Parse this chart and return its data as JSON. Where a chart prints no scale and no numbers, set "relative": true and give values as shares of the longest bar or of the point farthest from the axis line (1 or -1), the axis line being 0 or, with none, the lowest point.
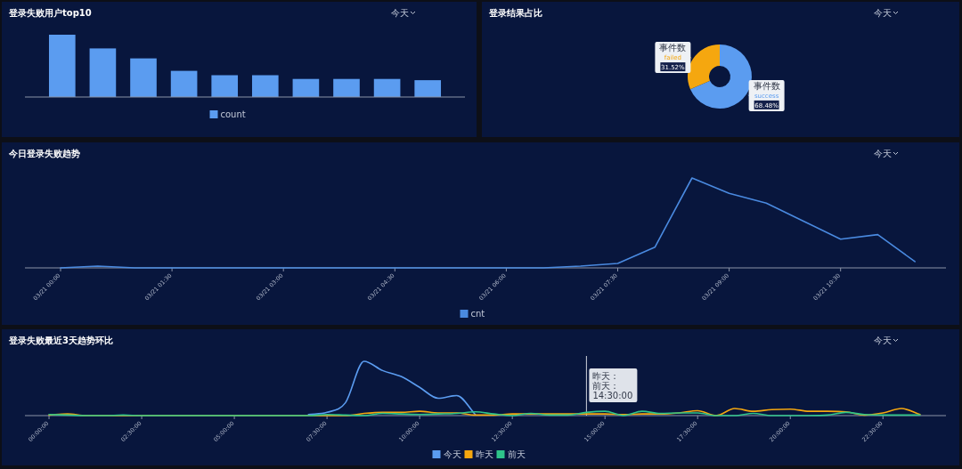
{
  "chart_data": [
    {
      "type": "bar",
      "title": "登录失败用户top10",
      "categories": [
        null,
        null,
        null,
        null,
        null,
        null,
        null,
        null,
        null,
        null
      ],
      "relative": true,
      "legend": "bottom",
      "annotations": [
        "今天"
      ],
      "series": [
        {
          "name": "count",
          "color": "#5b9cf0",
          "values": [
            1,
            0.78,
            0.62,
            0.42,
            0.35,
            0.35,
            0.29,
            0.29,
            0.29,
            0.27
          ]
        }
      ]
    },
    {
      "type": "donut",
      "title": "登录结果占比",
      "categories": [
        "success",
        "failed"
      ],
      "values": [
        68.48,
        31.52
      ],
      "colors": [
        "#5b9cf0",
        "#f5a70f"
      ],
      "value_labels": [
        "68.48%",
        "31.52%"
      ],
      "annotations": [
        {
          "text": "事件数",
          "x": "success"
        },
        {
          "text": "事件数",
          "x": "failed"
        },
        "今天"
      ]
    },
    {
      "type": "line",
      "title": "今日登录失败趋势",
      "relative": true,
      "legend": "bottom",
      "annotations": [
        "今天"
      ],
      "categories": [
        "03/21 00:00",
        null,
        null,
        "03/21 01:30",
        null,
        null,
        "03/21 03:00",
        null,
        null,
        "03/21 04:30",
        null,
        null,
        "03/21 06:00",
        null,
        null,
        "03/21 07:30",
        null,
        null,
        "03/21 09:00",
        null,
        null,
        "03/21 10:30",
        null,
        null
      ],
      "series": [
        {
          "name": "cnt",
          "color": "#4a8ae0",
          "values": [
            0,
            0.02,
            0,
            0,
            0,
            0,
            0,
            0,
            0,
            0,
            0,
            0,
            0,
            0,
            0.02,
            0.05,
            0.23,
            1,
            0.83,
            0.72,
            0.52,
            0.32,
            0.37,
            0.07
          ]
        }
      ]
    },
    {
      "type": "line",
      "title": "登录失败最近3天趋势环比",
      "relative": true,
      "legend": "bottom",
      "annotations": [
        "今天",
        {
          "text": "昨天：",
          "x": 14.5
        },
        {
          "text": "前天：",
          "x": 14.5
        },
        {
          "text": "14:30:00",
          "x": 14.5
        }
      ],
      "ref_lines": [
        {
          "axis": "x",
          "value": 14.5,
          "color": "#cfd3dc"
        }
      ],
      "x": [
        0,
        0.5,
        1,
        1.5,
        2,
        2.5,
        3,
        3.5,
        4,
        4.5,
        5,
        5.5,
        6,
        6.5,
        7,
        7.5,
        8,
        8.5,
        9,
        9.5,
        10,
        10.5,
        11,
        11.5,
        12,
        12.5,
        13,
        13.5,
        14,
        14.5,
        15,
        15.5,
        16,
        16.5,
        17,
        17.5,
        18,
        18.5,
        19,
        19.5,
        20,
        20.5,
        21,
        21.5,
        22,
        22.5,
        23,
        23.5
      ],
      "xlim": [
        -0.65,
        24.2
      ],
      "xticks": [
        {
          "value": 0,
          "label": "00:00:00"
        },
        {
          "value": 2.5,
          "label": "02:30:00"
        },
        {
          "value": 5,
          "label": "05:00:00"
        },
        {
          "value": 7.5,
          "label": "07:30:00"
        },
        {
          "value": 10,
          "label": "10:00:00"
        },
        {
          "value": 12.5,
          "label": "12:30:00"
        },
        {
          "value": 15,
          "label": "15:00:00"
        },
        {
          "value": 17.5,
          "label": "17:30:00"
        },
        {
          "value": 20,
          "label": "20:00:00"
        },
        {
          "value": 22.5,
          "label": "22:30:00"
        }
      ],
      "series": [
        {
          "name": "今天",
          "color": "#5b9cf0",
          "values": [
            null,
            null,
            null,
            null,
            null,
            null,
            null,
            null,
            null,
            null,
            null,
            null,
            null,
            null,
            0.02,
            0.06,
            0.24,
            1,
            0.83,
            0.72,
            0.52,
            0.32,
            0.37,
            0.02,
            null,
            null,
            null,
            null,
            null,
            null,
            null,
            null,
            null,
            null,
            null,
            null,
            null,
            null,
            null,
            null,
            null,
            null,
            null,
            null,
            null,
            null,
            null,
            null
          ]
        },
        {
          "name": "昨天",
          "color": "#f5a70f",
          "values": [
            0.01,
            0.03,
            0,
            0,
            0,
            0,
            0,
            0,
            0,
            0,
            0,
            0,
            0,
            0,
            0,
            0,
            0,
            0.04,
            0.06,
            0.06,
            0.08,
            0.05,
            0.05,
            0.01,
            0.01,
            0.03,
            0.03,
            0.03,
            0.03,
            0.03,
            0.03,
            0.02,
            0.03,
            0.03,
            0.05,
            0.09,
            0,
            0.13,
            0.08,
            0.11,
            0.12,
            0.08,
            0.08,
            0.07,
            0.01,
            0.05,
            0.13,
            0.02
          ]
        },
        {
          "name": "前天",
          "color": "#2ec48a",
          "values": [
            0.02,
            0.01,
            0,
            0,
            0.01,
            0,
            0,
            0,
            0,
            0,
            0,
            0,
            0,
            0,
            0,
            0.02,
            0.01,
            0,
            0.04,
            0.03,
            0.02,
            0.03,
            0.04,
            0.07,
            0.03,
            0,
            0.04,
            0.01,
            0.01,
            0.06,
            0.08,
            0,
            0.08,
            0.04,
            0.05,
            0.05,
            0,
            0,
            0.04,
            0,
            0,
            0,
            0.01,
            0.06,
            0.02,
            0.01,
            0.01,
            0.01
          ]
        }
      ]
    }
  ]
}
